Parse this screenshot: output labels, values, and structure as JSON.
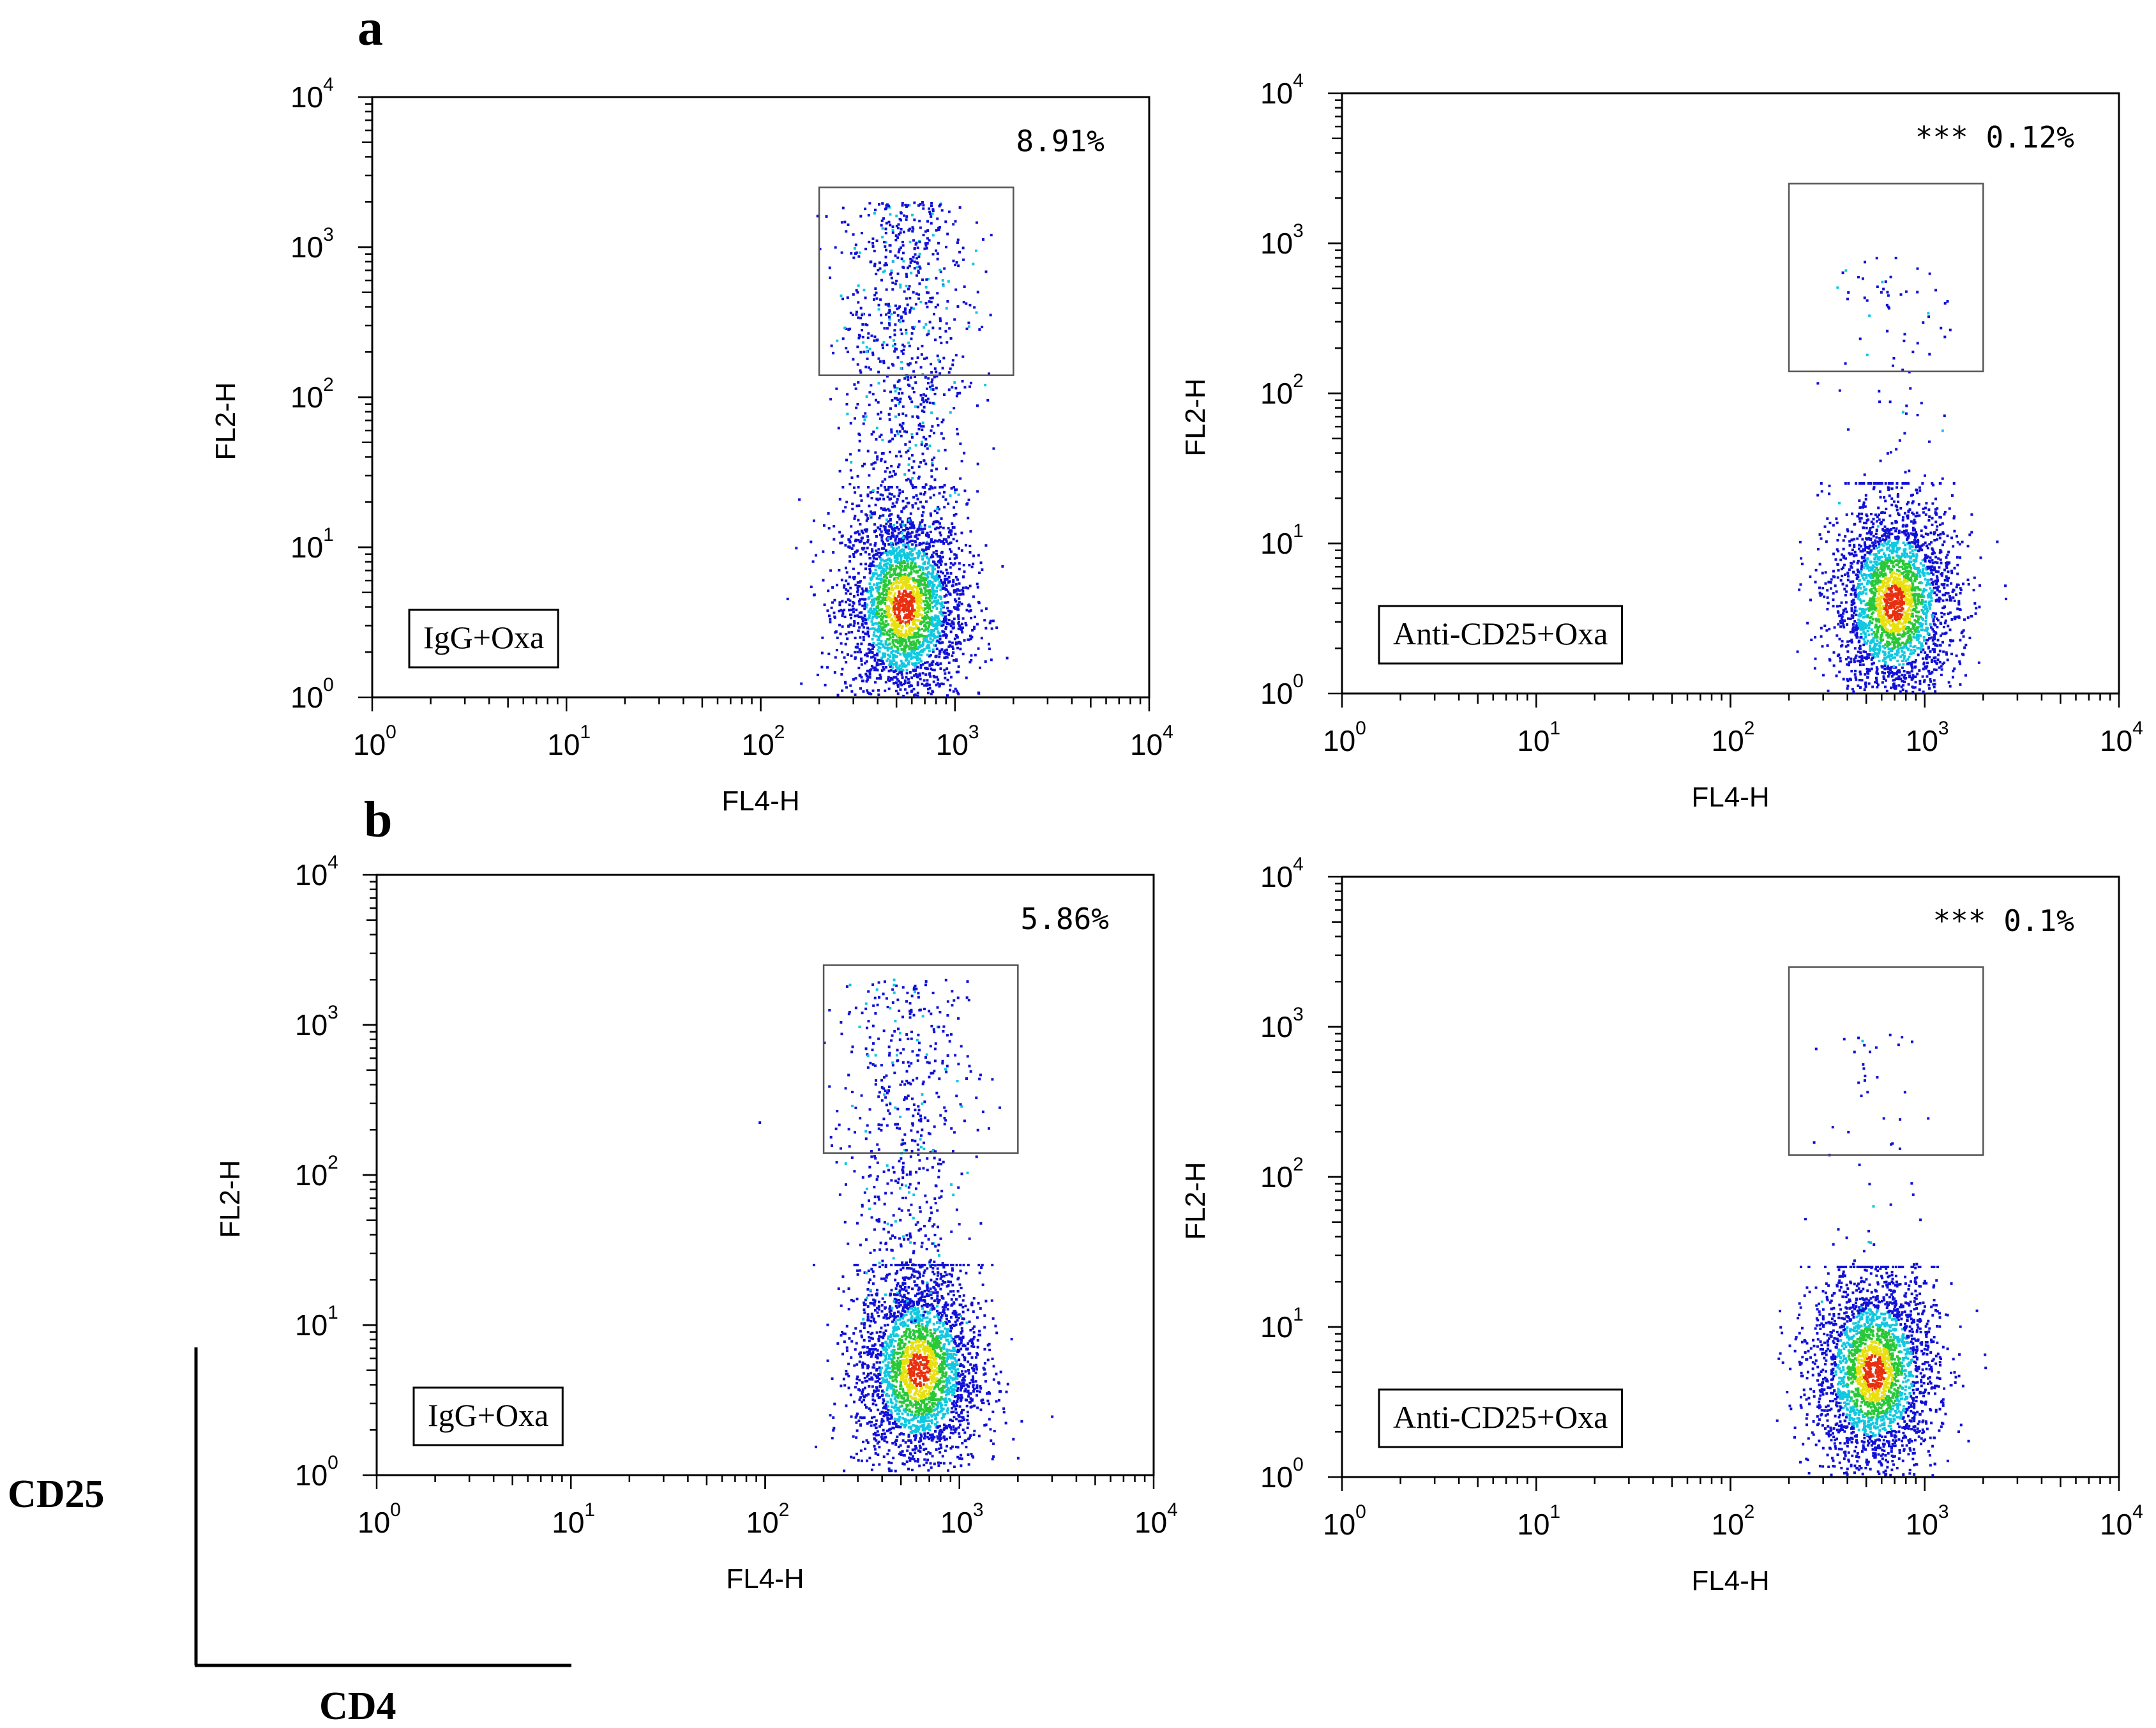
{
  "figure": {
    "panel_labels": [
      "a",
      "b"
    ],
    "marker_axes": {
      "y_label": "CD25",
      "x_label": "CD4"
    }
  },
  "chart_data": [
    {
      "type": "scatter",
      "panel": "a",
      "title": "",
      "xlabel": "FL4-H",
      "ylabel": "FL2-H",
      "xscale": "log",
      "yscale": "log",
      "xlim": [
        1,
        10000
      ],
      "ylim": [
        1,
        10000
      ],
      "tick_labels": [
        "10^0",
        "10^1",
        "10^2",
        "10^3",
        "10^4"
      ],
      "legend": "IgG+Oxa",
      "percentage": "8.91%",
      "significance": "",
      "gate": {
        "x": [
          200,
          2000
        ],
        "y": [
          140,
          2500
        ]
      },
      "populations": [
        {
          "name": "main cluster",
          "x_center": 550,
          "y_center": 4,
          "count": 2600
        },
        {
          "name": "CD25+ tail",
          "x_center": 550,
          "y_range": [
            10,
            2000
          ],
          "count": 900
        }
      ]
    },
    {
      "type": "scatter",
      "panel": "a",
      "title": "",
      "xlabel": "FL4-H",
      "ylabel": "FL2-H",
      "xscale": "log",
      "yscale": "log",
      "xlim": [
        1,
        10000
      ],
      "ylim": [
        1,
        10000
      ],
      "tick_labels": [
        "10^0",
        "10^1",
        "10^2",
        "10^3",
        "10^4"
      ],
      "legend": "Anti-CD25+Oxa",
      "percentage": "0.12%",
      "significance": "***",
      "gate": {
        "x": [
          200,
          2000
        ],
        "y": [
          140,
          2500
        ]
      },
      "populations": [
        {
          "name": "main cluster",
          "x_center": 700,
          "y_center": 4,
          "count": 2600
        },
        {
          "name": "CD25+ tail",
          "x_center": 650,
          "y_range": [
            10,
            800
          ],
          "count": 90
        }
      ]
    },
    {
      "type": "scatter",
      "panel": "b",
      "title": "",
      "xlabel": "FL4-H",
      "ylabel": "FL2-H",
      "xscale": "log",
      "yscale": "log",
      "xlim": [
        1,
        10000
      ],
      "ylim": [
        1,
        10000
      ],
      "tick_labels": [
        "10^0",
        "10^1",
        "10^2",
        "10^3",
        "10^4"
      ],
      "legend": "IgG+Oxa",
      "percentage": "5.86%",
      "significance": "",
      "gate": {
        "x": [
          200,
          2000
        ],
        "y": [
          140,
          2500
        ]
      },
      "populations": [
        {
          "name": "main cluster",
          "x_center": 620,
          "y_center": 5,
          "count": 2600
        },
        {
          "name": "CD25+ tail",
          "x_center": 550,
          "y_range": [
            10,
            2000
          ],
          "count": 600
        }
      ]
    },
    {
      "type": "scatter",
      "panel": "b",
      "title": "",
      "xlabel": "FL4-H",
      "ylabel": "FL2-H",
      "xscale": "log",
      "yscale": "log",
      "xlim": [
        1,
        10000
      ],
      "ylim": [
        1,
        10000
      ],
      "tick_labels": [
        "10^0",
        "10^1",
        "10^2",
        "10^3",
        "10^4"
      ],
      "legend": "Anti-CD25+Oxa",
      "percentage": "0.1%",
      "significance": "***",
      "gate": {
        "x": [
          200,
          2000
        ],
        "y": [
          140,
          2500
        ]
      },
      "populations": [
        {
          "name": "main cluster",
          "x_center": 550,
          "y_center": 5,
          "count": 2600
        },
        {
          "name": "CD25+ tail",
          "x_center": 550,
          "y_range": [
            10,
            900
          ],
          "count": 70
        }
      ]
    }
  ],
  "colors": {
    "density_low": "#1010d8",
    "density_mid": "#10c8e0",
    "density_midhigh": "#28c838",
    "density_high": "#e8e010",
    "density_peak": "#e83010",
    "axis": "#000000",
    "gate": "#555555"
  }
}
